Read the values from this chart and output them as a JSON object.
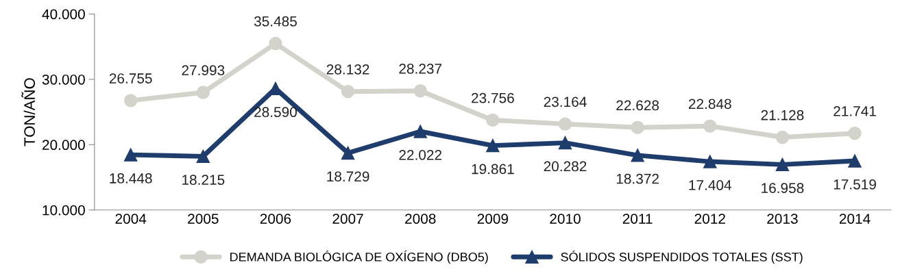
{
  "chart_data": {
    "type": "line",
    "ylabel": "TON/AÑO",
    "categories": [
      "2004",
      "2005",
      "2006",
      "2007",
      "2008",
      "2009",
      "2010",
      "2011",
      "2012",
      "2013",
      "2014"
    ],
    "series": [
      {
        "name": "DEMANDA BIOLÓGICA DE OXÍGENO (DBO5)",
        "color": "#d3d3cb",
        "marker": "circle",
        "values": [
          26755,
          27993,
          35485,
          28132,
          28237,
          23756,
          23164,
          22628,
          22848,
          21128,
          21741
        ],
        "value_labels": [
          "26.755",
          "27.993",
          "35.485",
          "28.132",
          "28.237",
          "23.756",
          "23.164",
          "22.628",
          "22.848",
          "21.128",
          "21.741"
        ]
      },
      {
        "name": "SÓLIDOS SUSPENDIDOS TOTALES (SST)",
        "color": "#1f3d6c",
        "marker": "triangle",
        "values": [
          18448,
          18215,
          28590,
          18729,
          22022,
          19861,
          20282,
          18372,
          17404,
          16958,
          17519
        ],
        "value_labels": [
          "18.448",
          "18.215",
          "28.590",
          "18.729",
          "22.022",
          "19.861",
          "20.282",
          "18.372",
          "17.404",
          "16.958",
          "17.519"
        ]
      }
    ],
    "ylim": [
      10000,
      40000
    ],
    "yticks": [
      {
        "value": 10000,
        "label": "10.000"
      },
      {
        "value": 20000,
        "label": "20.000"
      },
      {
        "value": 30000,
        "label": "30.000"
      },
      {
        "value": 40000,
        "label": "40.000"
      }
    ],
    "grid": false,
    "legend": "bottom",
    "line_style": "solid"
  }
}
